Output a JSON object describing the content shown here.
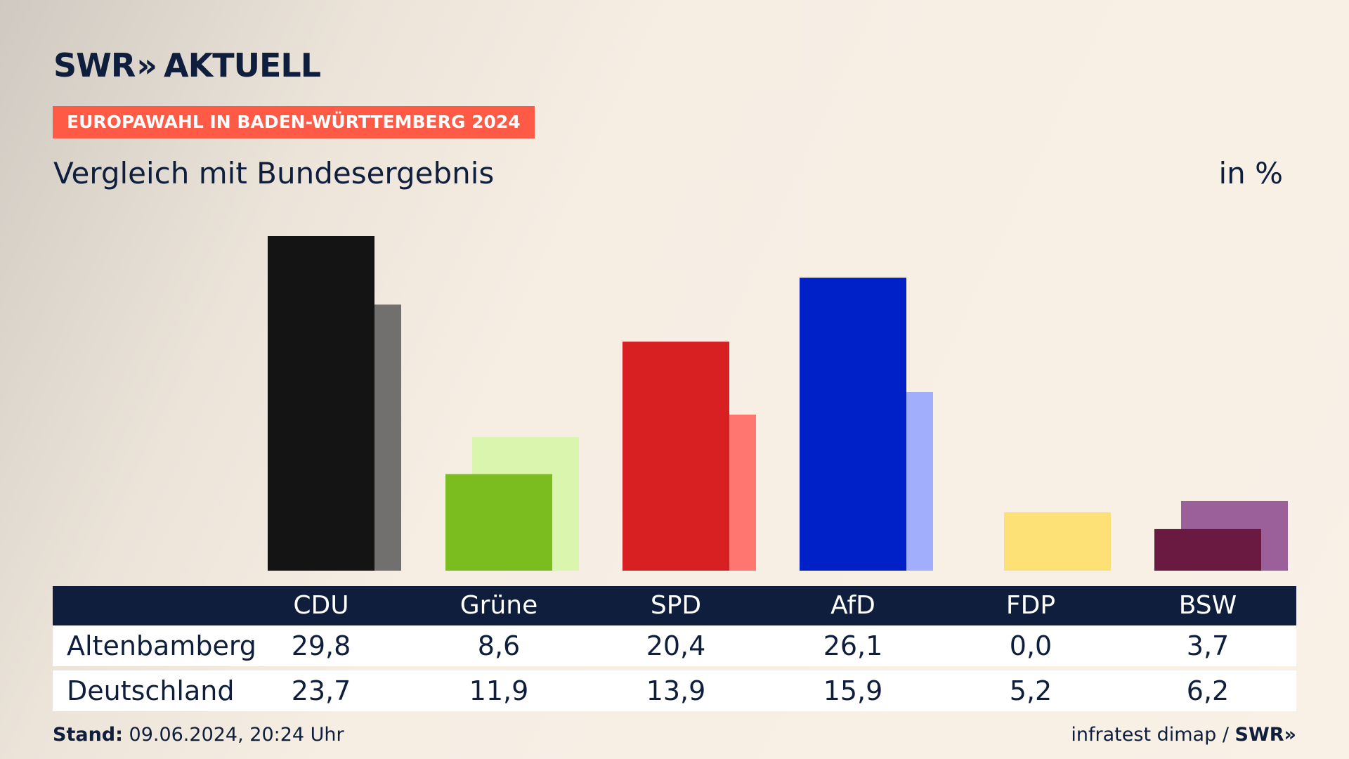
{
  "brand": {
    "logo_left": "SWR",
    "logo_right": "AKTUELL",
    "chevrons": "»"
  },
  "badge": "EUROPAWAHL IN BADEN-WÜRTTEMBERG 2024",
  "subtitle": "Vergleich mit Bundesergebnis",
  "unit": "in %",
  "colors": {
    "badge": "#ff5a46",
    "navy": "#0e1e3c"
  },
  "chart_data": {
    "type": "bar",
    "categories": [
      "CDU",
      "Grüne",
      "SPD",
      "AfD",
      "FDP",
      "BSW"
    ],
    "series": [
      {
        "name": "Altenbamberg",
        "values": [
          29.8,
          8.6,
          20.4,
          26.1,
          0.0,
          3.7
        ],
        "colors": [
          "#141414",
          "#7bbd1e",
          "#d81f22",
          "#0020c8",
          "#f2d55c",
          "#6a1a40"
        ]
      },
      {
        "name": "Deutschland",
        "values": [
          23.7,
          11.9,
          13.9,
          15.9,
          5.2,
          6.2
        ],
        "colors": [
          "#72706e",
          "#d9f5ae",
          "#ff7570",
          "#a1aefb",
          "#fde176",
          "#9b5f9a"
        ]
      }
    ],
    "ylim": [
      0,
      30
    ],
    "grid": false
  },
  "table": {
    "headers": [
      "CDU",
      "Grüne",
      "SPD",
      "AfD",
      "FDP",
      "BSW"
    ],
    "rows": [
      {
        "label": "Altenbamberg",
        "values": [
          "29,8",
          "8,6",
          "20,4",
          "26,1",
          "0,0",
          "3,7"
        ]
      },
      {
        "label": "Deutschland",
        "values": [
          "23,7",
          "11,9",
          "13,9",
          "15,9",
          "5,2",
          "6,2"
        ]
      }
    ]
  },
  "footer": {
    "stand_label": "Stand:",
    "stand_value": "09.06.2024, 20:24 Uhr",
    "source": "infratest dimap /",
    "source_logo": "SWR»"
  }
}
